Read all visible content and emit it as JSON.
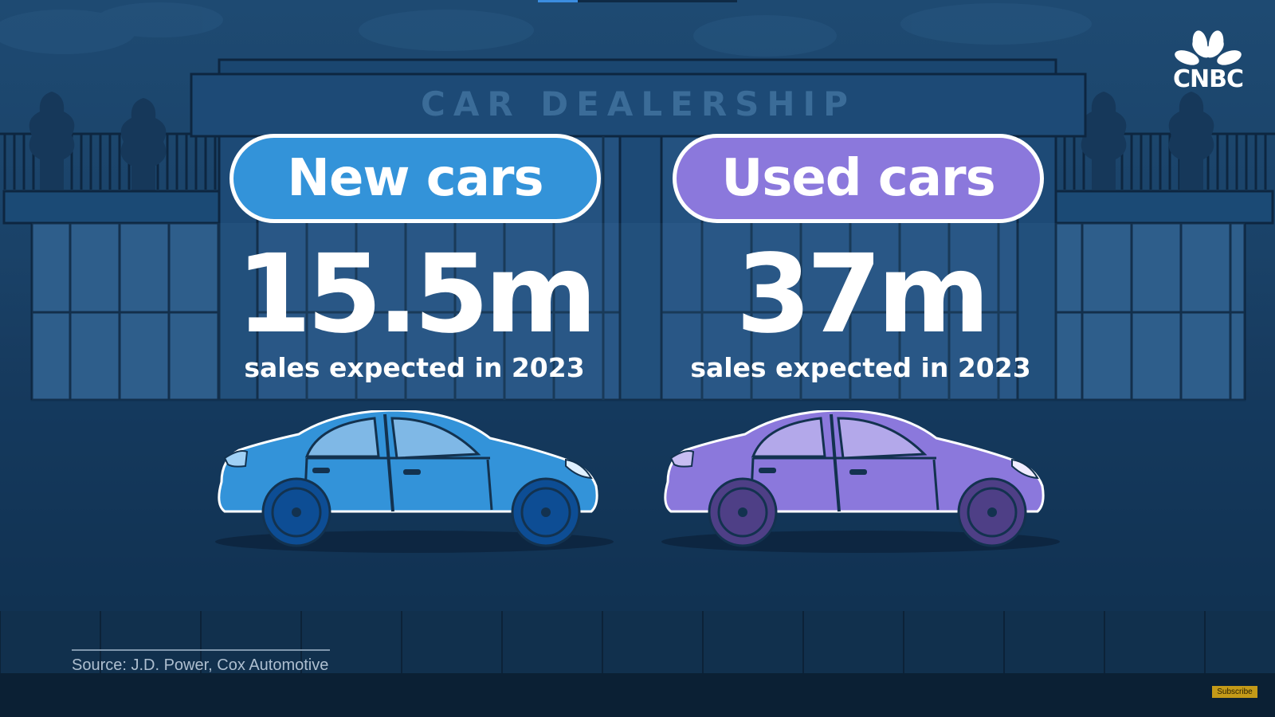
{
  "sign": {
    "text": "CAR DEALERSHIP"
  },
  "logo": {
    "text": "CNBC",
    "icon": "peacock-icon"
  },
  "new_cars": {
    "label": "New cars",
    "value": "15.5m",
    "subtitle": "sales expected in 2023",
    "color": "#3393d9"
  },
  "used_cars": {
    "label": "Used cars",
    "value": "37m",
    "subtitle": "sales expected in 2023",
    "color": "#8b78dc"
  },
  "source": "Source: J.D. Power, Cox Automotive",
  "subscribe": {
    "label": "Subscribe"
  },
  "colors": {
    "background": "#1a4268",
    "new": "#3393d9",
    "used": "#8b78dc",
    "wheel_new": "#0d4d94",
    "wheel_used": "#4e3f86"
  }
}
